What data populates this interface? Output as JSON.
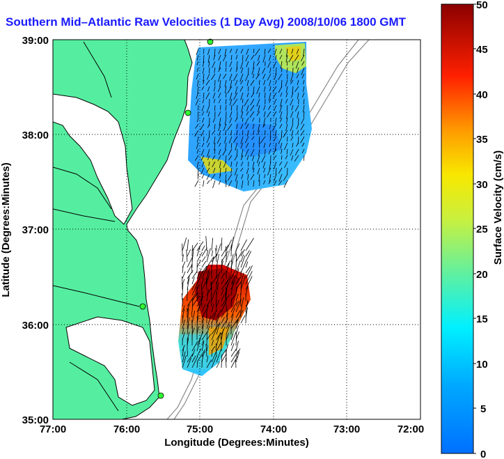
{
  "title": "Southern Mid–Atlantic Raw Velocities (1 Day Avg) 2008/10/06 1800 GMT",
  "map": {
    "xlabel": "Longitude (Degrees:Minutes)",
    "ylabel": "Latitude (Degrees:Minutes)",
    "x_ticks": [
      "77:00",
      "76:00",
      "75:00",
      "74:00",
      "73:00",
      "72:00"
    ],
    "y_ticks": [
      "39:00",
      "38:00",
      "37:00",
      "36:00",
      "35:00"
    ],
    "lon_range": [
      -77,
      -72
    ],
    "lat_range": [
      35,
      39
    ],
    "land_color": "#55eea0",
    "grid": "dotted"
  },
  "colorbar": {
    "label": "Surface Velocity (cm/s)",
    "ticks": [
      "50",
      "45",
      "40",
      "35",
      "30",
      "25",
      "20",
      "15",
      "10",
      "5",
      "0"
    ],
    "range": [
      0,
      50
    ],
    "colormap": "jet"
  }
}
